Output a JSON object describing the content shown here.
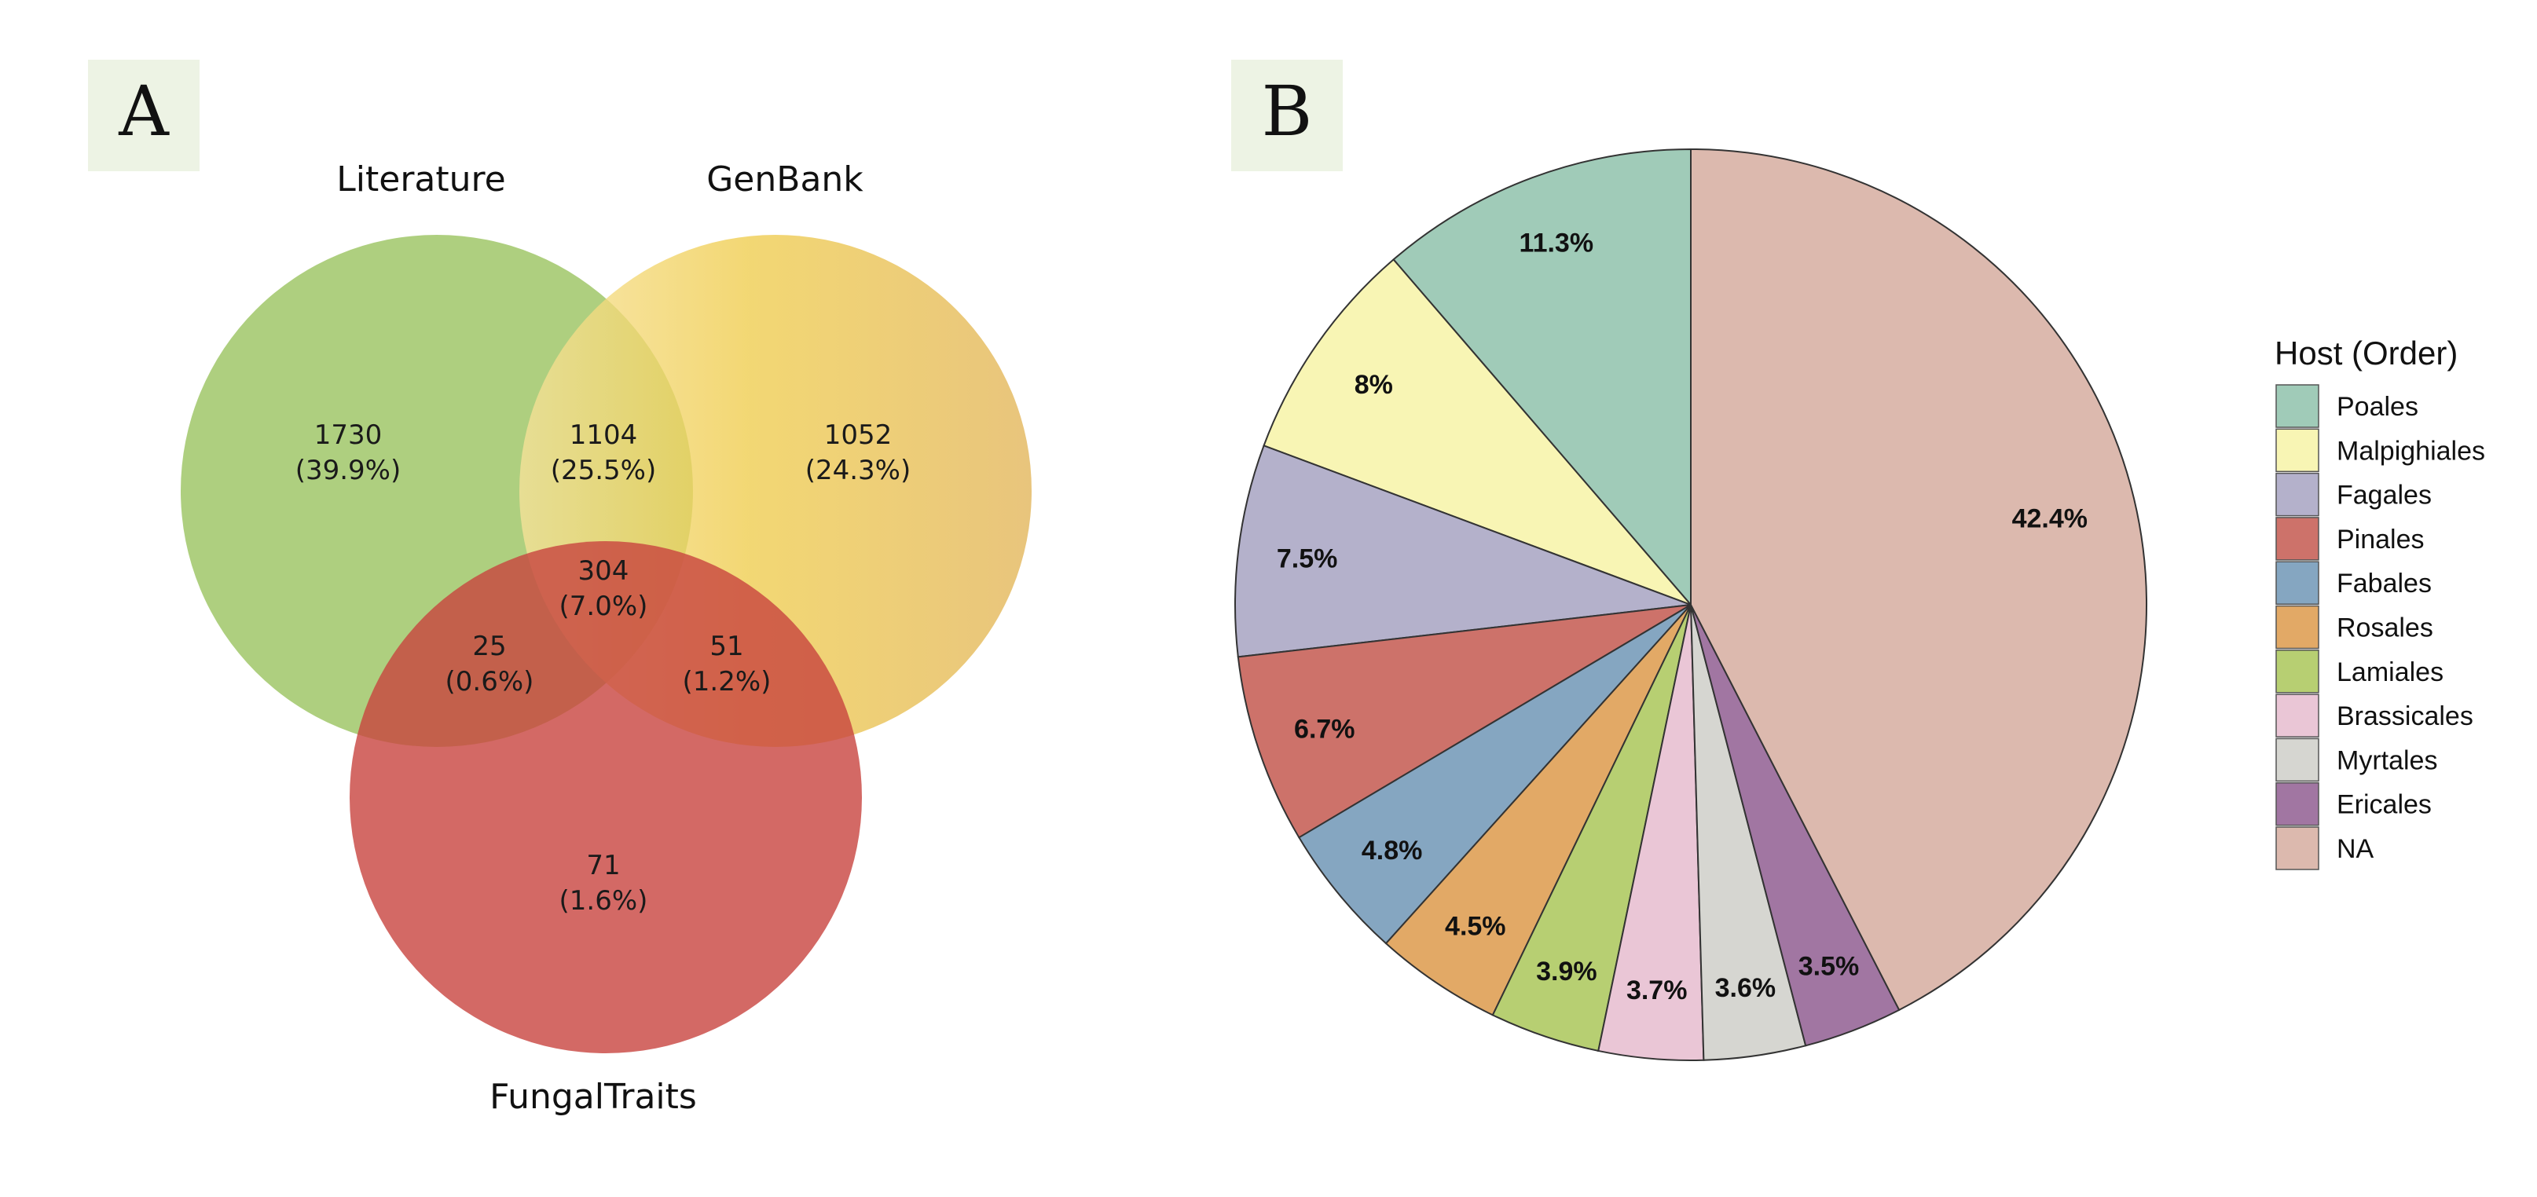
{
  "chart_data": [
    {
      "type": "venn",
      "panel_label": "A",
      "sets": [
        "Literature",
        "GenBank",
        "FungalTraits"
      ],
      "regions": [
        {
          "sets": [
            "Literature"
          ],
          "count": "1730",
          "percent": "(39.9%)"
        },
        {
          "sets": [
            "Literature",
            "GenBank"
          ],
          "count": "1104",
          "percent": "(25.5%)"
        },
        {
          "sets": [
            "GenBank"
          ],
          "count": "1052",
          "percent": "(24.3%)"
        },
        {
          "sets": [
            "Literature",
            "GenBank",
            "FungalTraits"
          ],
          "count": "304",
          "percent": "(7.0%)"
        },
        {
          "sets": [
            "Literature",
            "FungalTraits"
          ],
          "count": "25",
          "percent": "(0.6%)"
        },
        {
          "sets": [
            "GenBank",
            "FungalTraits"
          ],
          "count": "51",
          "percent": "(1.2%)"
        },
        {
          "sets": [
            "FungalTraits"
          ],
          "count": "71",
          "percent": "(1.6%)"
        }
      ],
      "colors": {
        "Literature": "#97c15b",
        "GenBank": "#eec642",
        "FungalTraits": "#c8433e"
      }
    },
    {
      "type": "pie",
      "panel_label": "B",
      "legend_title": "Host (Order)",
      "legend_position": "right",
      "start": "12 o'clock, counter-clockwise",
      "slices": [
        {
          "name": "Poales",
          "value": 11.3,
          "label": "11.3%",
          "color": "#a0cbb8"
        },
        {
          "name": "Malpighiales",
          "value": 8.0,
          "label": "8%",
          "color": "#f8f5b4"
        },
        {
          "name": "Fagales",
          "value": 7.5,
          "label": "7.5%",
          "color": "#b4b1cb"
        },
        {
          "name": "Pinales",
          "value": 6.7,
          "label": "6.7%",
          "color": "#cd726a"
        },
        {
          "name": "Fabales",
          "value": 4.8,
          "label": "4.8%",
          "color": "#85a6c1"
        },
        {
          "name": "Rosales",
          "value": 4.5,
          "label": "4.5%",
          "color": "#e2a966"
        },
        {
          "name": "Lamiales",
          "value": 3.9,
          "label": "3.9%",
          "color": "#b7cf72"
        },
        {
          "name": "Brassicales",
          "value": 3.7,
          "label": "3.7%",
          "color": "#eac6d6"
        },
        {
          "name": "Myrtales",
          "value": 3.6,
          "label": "3.6%",
          "color": "#d6d6d1"
        },
        {
          "name": "Ericales",
          "value": 3.5,
          "label": "3.5%",
          "color": "#a176a2"
        },
        {
          "name": "NA",
          "value": 42.4,
          "label": "42.4%",
          "color": "#dcb9ae"
        }
      ]
    }
  ]
}
